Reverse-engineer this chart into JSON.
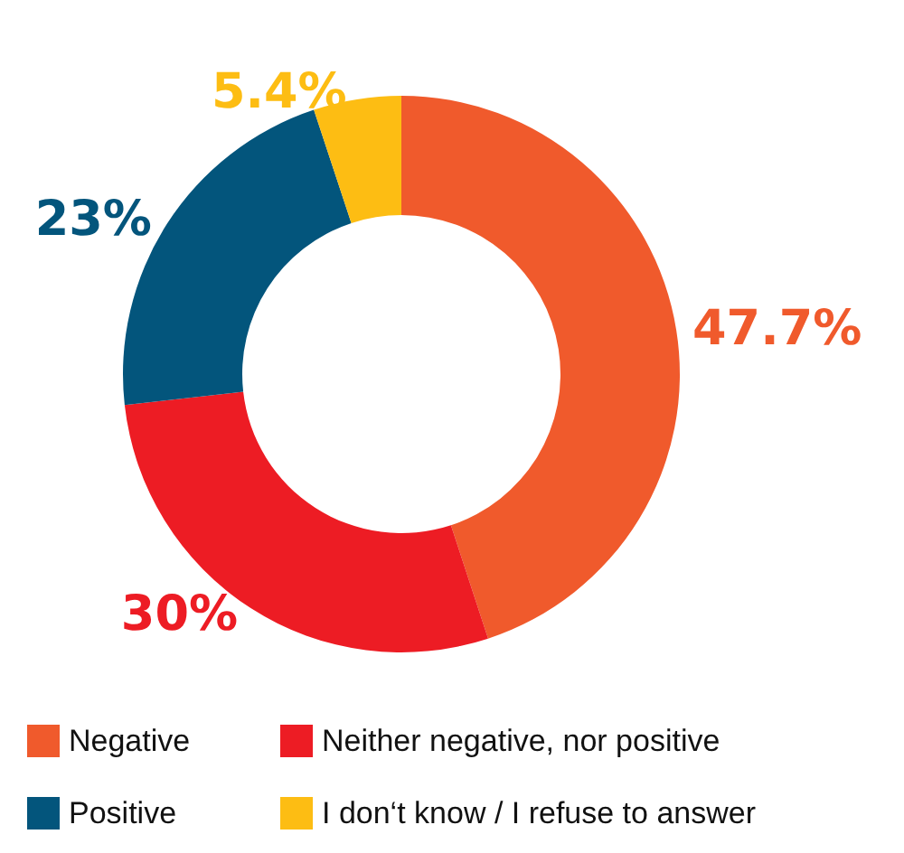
{
  "chart_data": {
    "type": "donut",
    "categories": [
      "Negative",
      "Neither negative, nor positive",
      "Positive",
      "I don‘t know / I refuse to answer"
    ],
    "values": [
      47.7,
      30,
      23,
      5.4
    ],
    "value_labels": [
      "47.7%",
      "30%",
      "23%",
      "5.4%"
    ],
    "colors": [
      "#f05a2c",
      "#ed1c24",
      "#03557c",
      "#fdbd13"
    ],
    "legend": "bottom"
  }
}
